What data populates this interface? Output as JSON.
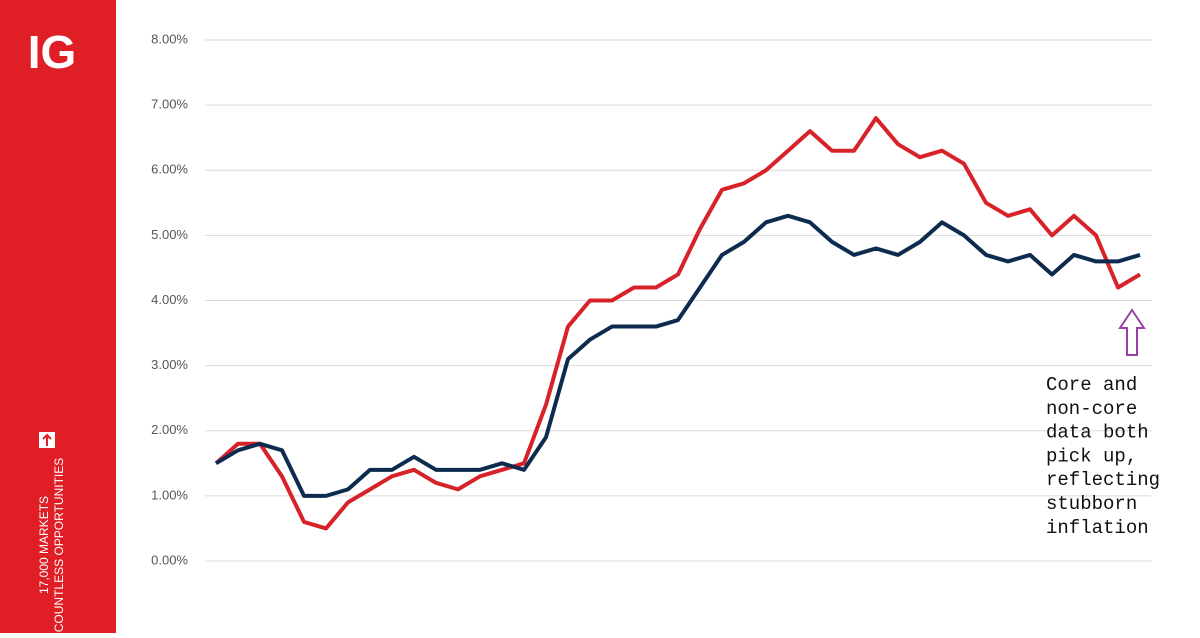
{
  "brand": {
    "logo": "IG",
    "tagline": [
      "17,000 MARKETS",
      "COUNTLESS OPPORTUNITIES"
    ]
  },
  "chart_data": {
    "type": "line",
    "annotation": [
      "Core and",
      "non-core",
      "data both",
      "pick up,",
      "reflecting",
      "stubborn",
      "inflation"
    ],
    "series": [
      {
        "color": "#d7222a",
        "values": [
          1.5,
          1.8,
          1.8,
          1.3,
          0.6,
          0.5,
          0.9,
          1.1,
          1.3,
          1.4,
          1.2,
          1.1,
          1.3,
          1.4,
          1.5,
          2.4,
          3.6,
          4.0,
          4.0,
          4.2,
          4.2,
          4.4,
          5.1,
          5.7,
          5.8,
          6.0,
          6.3,
          6.6,
          6.3,
          6.3,
          6.8,
          6.4,
          6.2,
          6.3,
          6.1,
          5.5,
          5.3,
          5.4,
          5.0,
          5.3,
          5.0,
          4.2,
          4.4
        ]
      },
      {
        "color": "#0d2b4e",
        "values": [
          1.5,
          1.7,
          1.8,
          1.7,
          1.0,
          1.0,
          1.1,
          1.4,
          1.4,
          1.6,
          1.4,
          1.4,
          1.4,
          1.5,
          1.4,
          1.9,
          3.1,
          3.4,
          3.6,
          3.6,
          3.6,
          3.7,
          4.2,
          4.7,
          4.9,
          5.2,
          5.3,
          5.2,
          4.9,
          4.7,
          4.8,
          4.7,
          4.9,
          5.2,
          5.0,
          4.7,
          4.6,
          4.7,
          4.4,
          4.7,
          4.6,
          4.6,
          4.7
        ]
      }
    ],
    "ylim": [
      0,
      8
    ],
    "yticks": [
      {
        "value": 0,
        "label": "0.00%"
      },
      {
        "value": 1,
        "label": "1.00%"
      },
      {
        "value": 2,
        "label": "2.00%"
      },
      {
        "value": 3,
        "label": "3.00%"
      },
      {
        "value": 4,
        "label": "4.00%"
      },
      {
        "value": 5,
        "label": "5.00%"
      },
      {
        "value": 6,
        "label": "6.00%"
      },
      {
        "value": 7,
        "label": "7.00%"
      },
      {
        "value": 8,
        "label": "8.00%"
      }
    ],
    "grid": true
  }
}
